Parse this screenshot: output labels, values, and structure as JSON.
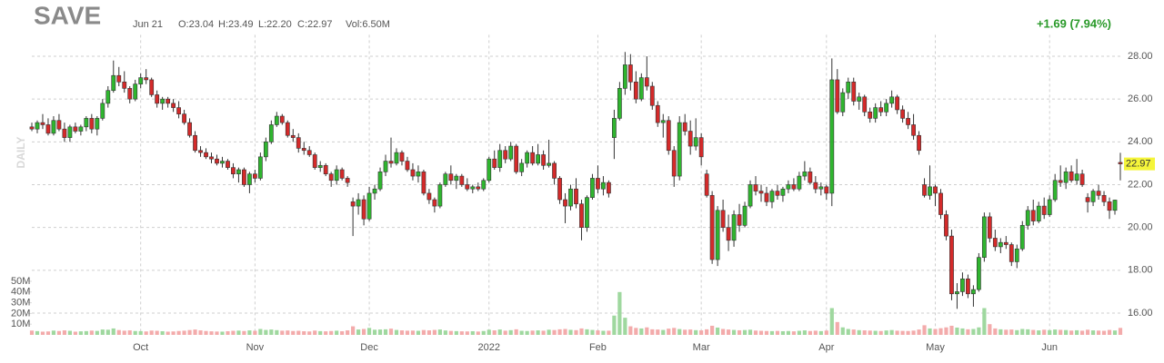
{
  "chart_data": {
    "type": "candlestick",
    "title": "SAVE",
    "side_label": "DAILY",
    "header": {
      "date": "Jun 21",
      "open": "O:23.04",
      "high": "H:23.49",
      "low": "L:22.20",
      "close": "C:22.97",
      "volume": "Vol:6.50M",
      "change": "+1.69 (7.94%)"
    },
    "up_color": "#2fb52f",
    "down_color": "#d42a2a",
    "volume_up_color": "#9fd89f",
    "volume_down_color": "#f3abab",
    "change_color": "#2a9a2a",
    "grid": true,
    "ylim": [
      15,
      29
    ],
    "yticks": [
      {
        "value": 16,
        "label": "16.00"
      },
      {
        "value": 18,
        "label": "18.00"
      },
      {
        "value": 20,
        "label": "20.00"
      },
      {
        "value": 22,
        "label": "22.00"
      },
      {
        "value": 24,
        "label": "24.00"
      },
      {
        "value": 26,
        "label": "26.00"
      },
      {
        "value": 28,
        "label": "28.00"
      }
    ],
    "last_price": {
      "value": 22.97,
      "label": "22.97"
    },
    "volume_ylim": [
      0,
      60
    ],
    "volume_ticks": [
      {
        "value": 10,
        "label": "10M"
      },
      {
        "value": 20,
        "label": "20M"
      },
      {
        "value": 30,
        "label": "30M"
      },
      {
        "value": 40,
        "label": "40M"
      },
      {
        "value": 50,
        "label": "50M"
      }
    ],
    "xticks": [
      {
        "value": 20,
        "label": "Oct"
      },
      {
        "value": 41,
        "label": "Nov"
      },
      {
        "value": 62,
        "label": "Dec"
      },
      {
        "value": 84,
        "label": "2022"
      },
      {
        "value": 104,
        "label": "Feb"
      },
      {
        "value": 123,
        "label": "Mar"
      },
      {
        "value": 146,
        "label": "Apr"
      },
      {
        "value": 166,
        "label": "May"
      },
      {
        "value": 187,
        "label": "Jun"
      }
    ],
    "candles": [
      [
        24.7,
        24.9,
        24.5,
        24.6
      ],
      [
        24.6,
        25.0,
        24.4,
        24.9
      ],
      [
        24.9,
        25.3,
        24.6,
        24.8
      ],
      [
        24.8,
        25.1,
        24.3,
        24.4
      ],
      [
        24.4,
        25.2,
        24.3,
        25.0
      ],
      [
        25.0,
        25.3,
        24.5,
        24.6
      ],
      [
        24.6,
        24.9,
        24.0,
        24.2
      ],
      [
        24.2,
        24.8,
        24.0,
        24.7
      ],
      [
        24.7,
        24.9,
        24.4,
        24.5
      ],
      [
        24.5,
        24.8,
        24.3,
        24.7
      ],
      [
        24.7,
        25.2,
        24.5,
        25.1
      ],
      [
        25.1,
        25.3,
        24.4,
        24.6
      ],
      [
        24.6,
        25.2,
        24.3,
        25.1
      ],
      [
        25.1,
        26.0,
        25.0,
        25.8
      ],
      [
        25.8,
        26.6,
        25.6,
        26.4
      ],
      [
        26.4,
        27.8,
        26.3,
        27.1
      ],
      [
        27.1,
        27.5,
        26.6,
        26.8
      ],
      [
        26.8,
        27.3,
        26.3,
        26.5
      ],
      [
        26.5,
        26.6,
        25.8,
        26.0
      ],
      [
        26.0,
        26.9,
        25.9,
        26.7
      ],
      [
        26.7,
        27.2,
        26.5,
        27.0
      ],
      [
        27.0,
        27.4,
        26.7,
        26.9
      ],
      [
        26.9,
        27.0,
        26.1,
        26.2
      ],
      [
        26.2,
        26.4,
        25.6,
        25.8
      ],
      [
        25.8,
        26.1,
        25.5,
        26.0
      ],
      [
        26.0,
        26.1,
        25.6,
        25.8
      ],
      [
        25.8,
        26.0,
        25.4,
        25.6
      ],
      [
        25.6,
        25.9,
        25.1,
        25.3
      ],
      [
        25.3,
        25.5,
        24.8,
        24.9
      ],
      [
        24.9,
        25.1,
        24.2,
        24.3
      ],
      [
        24.3,
        24.5,
        23.5,
        23.6
      ],
      [
        23.6,
        23.8,
        23.3,
        23.5
      ],
      [
        23.5,
        23.7,
        23.2,
        23.3
      ],
      [
        23.3,
        23.5,
        23.0,
        23.2
      ],
      [
        23.2,
        23.4,
        22.9,
        23.0
      ],
      [
        23.0,
        23.3,
        22.8,
        23.1
      ],
      [
        23.1,
        23.2,
        22.7,
        22.8
      ],
      [
        22.8,
        23.0,
        22.3,
        22.5
      ],
      [
        22.5,
        22.8,
        22.1,
        22.7
      ],
      [
        22.7,
        22.8,
        21.9,
        22.0
      ],
      [
        22.0,
        22.6,
        21.6,
        22.5
      ],
      [
        22.5,
        22.7,
        22.1,
        22.3
      ],
      [
        22.3,
        23.5,
        22.2,
        23.3
      ],
      [
        23.3,
        24.2,
        23.1,
        24.0
      ],
      [
        24.0,
        25.0,
        23.9,
        24.8
      ],
      [
        24.8,
        25.4,
        24.7,
        25.2
      ],
      [
        25.2,
        25.3,
        24.8,
        24.9
      ],
      [
        24.9,
        25.0,
        24.2,
        24.3
      ],
      [
        24.3,
        24.6,
        24.0,
        24.2
      ],
      [
        24.2,
        24.4,
        23.5,
        23.7
      ],
      [
        23.7,
        24.0,
        23.4,
        23.6
      ],
      [
        23.6,
        23.8,
        23.3,
        23.4
      ],
      [
        23.4,
        23.5,
        22.7,
        22.8
      ],
      [
        22.8,
        23.1,
        22.6,
        22.9
      ],
      [
        22.9,
        23.0,
        22.4,
        22.5
      ],
      [
        22.5,
        22.6,
        21.9,
        22.2
      ],
      [
        22.2,
        22.9,
        22.0,
        22.7
      ],
      [
        22.7,
        22.8,
        22.2,
        22.3
      ],
      [
        22.3,
        22.4,
        21.9,
        22.1
      ],
      [
        21.2,
        21.4,
        19.6,
        21.0
      ],
      [
        21.0,
        21.6,
        20.6,
        21.3
      ],
      [
        21.3,
        21.5,
        20.1,
        20.4
      ],
      [
        20.4,
        21.9,
        20.3,
        21.6
      ],
      [
        21.6,
        22.0,
        21.3,
        21.8
      ],
      [
        21.8,
        22.8,
        21.7,
        22.6
      ],
      [
        22.6,
        23.4,
        22.4,
        23.1
      ],
      [
        23.1,
        24.2,
        22.8,
        23.0
      ],
      [
        23.0,
        23.7,
        22.9,
        23.5
      ],
      [
        23.5,
        23.6,
        22.9,
        23.1
      ],
      [
        23.1,
        23.3,
        22.6,
        22.7
      ],
      [
        22.7,
        23.0,
        22.2,
        22.4
      ],
      [
        22.4,
        22.9,
        22.1,
        22.6
      ],
      [
        22.6,
        22.7,
        21.5,
        21.6
      ],
      [
        21.6,
        21.8,
        21.1,
        21.3
      ],
      [
        21.3,
        21.4,
        20.7,
        21.0
      ],
      [
        21.0,
        22.1,
        20.9,
        22.0
      ],
      [
        22.0,
        22.6,
        21.9,
        22.5
      ],
      [
        22.5,
        22.9,
        22.0,
        22.2
      ],
      [
        22.2,
        22.5,
        21.8,
        22.4
      ],
      [
        22.4,
        22.5,
        21.9,
        22.0
      ],
      [
        22.0,
        22.3,
        21.7,
        21.8
      ],
      [
        21.8,
        22.0,
        21.6,
        21.9
      ],
      [
        21.9,
        22.1,
        21.7,
        21.8
      ],
      [
        21.8,
        22.3,
        21.7,
        22.2
      ],
      [
        22.2,
        23.3,
        22.1,
        23.2
      ],
      [
        23.2,
        23.6,
        22.7,
        22.8
      ],
      [
        22.8,
        23.9,
        22.6,
        23.6
      ],
      [
        23.6,
        23.8,
        23.0,
        23.2
      ],
      [
        23.2,
        24.0,
        23.1,
        23.8
      ],
      [
        23.8,
        23.9,
        22.5,
        22.6
      ],
      [
        22.6,
        23.2,
        22.4,
        23.0
      ],
      [
        23.0,
        23.6,
        22.8,
        23.5
      ],
      [
        23.5,
        23.8,
        22.9,
        23.0
      ],
      [
        23.0,
        23.9,
        22.9,
        23.4
      ],
      [
        23.4,
        23.6,
        22.7,
        22.9
      ],
      [
        22.9,
        24.1,
        22.8,
        23.0
      ],
      [
        23.0,
        23.1,
        22.0,
        22.3
      ],
      [
        22.3,
        22.4,
        21.1,
        21.3
      ],
      [
        21.3,
        21.6,
        20.2,
        21.0
      ],
      [
        21.0,
        22.0,
        20.8,
        21.8
      ],
      [
        21.8,
        22.3,
        20.9,
        21.1
      ],
      [
        21.1,
        21.3,
        19.4,
        20.0
      ],
      [
        20.0,
        21.5,
        19.8,
        21.4
      ],
      [
        21.4,
        22.5,
        21.3,
        22.3
      ],
      [
        22.3,
        22.9,
        21.6,
        21.8
      ],
      [
        21.8,
        22.4,
        21.5,
        22.1
      ],
      [
        22.1,
        22.2,
        21.4,
        21.6
      ],
      [
        24.2,
        25.5,
        23.2,
        25.1
      ],
      [
        25.1,
        26.8,
        25.0,
        26.5
      ],
      [
        26.5,
        28.2,
        26.2,
        27.6
      ],
      [
        27.6,
        28.1,
        26.4,
        26.8
      ],
      [
        26.8,
        27.3,
        25.8,
        26.0
      ],
      [
        26.0,
        27.2,
        25.9,
        27.0
      ],
      [
        27.0,
        28.0,
        26.4,
        26.6
      ],
      [
        26.6,
        26.8,
        25.5,
        25.7
      ],
      [
        25.7,
        25.9,
        24.7,
        24.9
      ],
      [
        24.9,
        25.3,
        24.2,
        25.0
      ],
      [
        25.0,
        25.2,
        23.4,
        23.6
      ],
      [
        23.6,
        23.8,
        21.9,
        22.4
      ],
      [
        22.4,
        25.2,
        22.2,
        24.9
      ],
      [
        24.9,
        25.3,
        24.3,
        24.5
      ],
      [
        24.5,
        25.0,
        23.4,
        23.8
      ],
      [
        23.8,
        25.1,
        23.6,
        24.2
      ],
      [
        24.2,
        24.4,
        22.9,
        23.3
      ],
      [
        22.5,
        22.7,
        21.4,
        21.5
      ],
      [
        21.5,
        21.7,
        18.3,
        18.5
      ],
      [
        18.5,
        21.0,
        18.2,
        20.8
      ],
      [
        20.8,
        21.3,
        19.8,
        20.0
      ],
      [
        20.0,
        20.6,
        18.9,
        19.4
      ],
      [
        19.4,
        20.8,
        19.1,
        20.6
      ],
      [
        20.6,
        21.1,
        19.8,
        20.1
      ],
      [
        20.1,
        21.2,
        20.0,
        21.0
      ],
      [
        21.0,
        22.2,
        20.9,
        22.0
      ],
      [
        22.0,
        22.4,
        21.5,
        21.7
      ],
      [
        21.7,
        22.0,
        21.2,
        21.6
      ],
      [
        21.6,
        21.9,
        21.0,
        21.2
      ],
      [
        21.2,
        21.8,
        20.9,
        21.7
      ],
      [
        21.7,
        22.0,
        21.3,
        21.5
      ],
      [
        21.5,
        21.9,
        21.2,
        21.8
      ],
      [
        21.8,
        22.2,
        21.6,
        22.0
      ],
      [
        22.0,
        22.3,
        21.7,
        21.8
      ],
      [
        21.8,
        22.6,
        21.7,
        22.4
      ],
      [
        22.4,
        23.1,
        22.2,
        22.6
      ],
      [
        22.6,
        22.8,
        22.0,
        22.1
      ],
      [
        22.1,
        22.4,
        21.6,
        21.8
      ],
      [
        21.8,
        22.1,
        21.5,
        21.9
      ],
      [
        21.9,
        22.0,
        21.3,
        21.6
      ],
      [
        21.6,
        27.9,
        21.0,
        26.9
      ],
      [
        26.9,
        27.4,
        25.3,
        25.4
      ],
      [
        25.4,
        26.5,
        25.2,
        26.3
      ],
      [
        26.3,
        27.0,
        26.0,
        26.8
      ],
      [
        26.8,
        27.0,
        25.7,
        25.9
      ],
      [
        25.9,
        26.3,
        25.5,
        26.1
      ],
      [
        26.1,
        26.2,
        25.2,
        25.4
      ],
      [
        25.4,
        25.6,
        24.9,
        25.1
      ],
      [
        25.1,
        25.8,
        24.9,
        25.6
      ],
      [
        25.6,
        25.9,
        25.2,
        25.4
      ],
      [
        25.4,
        26.0,
        25.2,
        25.8
      ],
      [
        25.8,
        26.4,
        25.6,
        26.1
      ],
      [
        26.1,
        26.2,
        25.3,
        25.5
      ],
      [
        25.5,
        25.7,
        24.9,
        25.1
      ],
      [
        25.1,
        25.4,
        24.6,
        24.8
      ],
      [
        24.8,
        25.3,
        24.1,
        24.3
      ],
      [
        24.3,
        24.5,
        23.4,
        23.6
      ],
      [
        22.0,
        22.3,
        21.4,
        21.5
      ],
      [
        21.5,
        22.9,
        21.3,
        21.9
      ],
      [
        21.9,
        22.0,
        21.0,
        21.6
      ],
      [
        21.6,
        21.8,
        20.4,
        20.6
      ],
      [
        20.6,
        20.8,
        19.4,
        19.6
      ],
      [
        19.6,
        19.9,
        16.6,
        16.9
      ],
      [
        16.9,
        17.4,
        16.2,
        17.0
      ],
      [
        17.0,
        17.9,
        16.8,
        17.6
      ],
      [
        17.6,
        17.8,
        16.7,
        16.9
      ],
      [
        16.9,
        17.3,
        16.3,
        17.1
      ],
      [
        17.1,
        18.8,
        17.0,
        18.6
      ],
      [
        18.6,
        20.7,
        18.4,
        20.5
      ],
      [
        20.5,
        20.7,
        19.3,
        19.5
      ],
      [
        19.5,
        19.9,
        18.9,
        19.1
      ],
      [
        19.1,
        19.5,
        18.8,
        19.3
      ],
      [
        19.3,
        19.6,
        19.0,
        19.2
      ],
      [
        19.2,
        19.3,
        18.2,
        18.4
      ],
      [
        18.4,
        19.2,
        18.1,
        19.0
      ],
      [
        19.0,
        20.3,
        18.9,
        20.1
      ],
      [
        20.1,
        21.0,
        19.9,
        20.8
      ],
      [
        20.8,
        21.3,
        20.1,
        20.3
      ],
      [
        20.3,
        21.2,
        20.2,
        21.0
      ],
      [
        21.0,
        21.4,
        20.4,
        20.6
      ],
      [
        20.6,
        21.5,
        20.5,
        21.3
      ],
      [
        21.3,
        22.5,
        21.2,
        22.2
      ],
      [
        22.2,
        22.9,
        21.9,
        22.1
      ],
      [
        22.1,
        22.8,
        21.8,
        22.6
      ],
      [
        22.6,
        22.9,
        22.1,
        22.2
      ],
      [
        22.2,
        23.2,
        22.0,
        22.5
      ],
      [
        22.5,
        22.7,
        21.9,
        22.0
      ],
      [
        21.4,
        21.6,
        20.7,
        21.2
      ],
      [
        21.2,
        21.8,
        21.0,
        21.7
      ],
      [
        21.7,
        22.0,
        21.3,
        21.5
      ],
      [
        21.5,
        21.7,
        21.0,
        21.2
      ],
      [
        21.2,
        21.4,
        20.4,
        20.8
      ],
      [
        20.8,
        21.3,
        20.6,
        21.28
      ],
      [
        23.04,
        23.49,
        22.2,
        22.97
      ]
    ],
    "volume": [
      4,
      3.5,
      3,
      3.2,
      4,
      3.6,
      4.2,
      3.8,
      3,
      3.3,
      3.5,
      4,
      3.7,
      5,
      4.8,
      6,
      4.5,
      3.9,
      4.2,
      3.6,
      3.5,
      3.2,
      4,
      3.8,
      3.4,
      3,
      3.2,
      3.6,
      3.9,
      4.5,
      5,
      4.2,
      3.6,
      3.3,
      3.1,
      3,
      3.4,
      3.8,
      4,
      3.6,
      4.2,
      3.8,
      5.5,
      4.6,
      5,
      4.4,
      3.9,
      4.1,
      3.6,
      3.8,
      3.4,
      3.2,
      4,
      3.5,
      3.3,
      3.6,
      3.9,
      3.4,
      4.2,
      8,
      5,
      5.5,
      6.5,
      4.8,
      5,
      5.2,
      5.8,
      4.6,
      4.2,
      3.9,
      4,
      3.8,
      4.5,
      4.2,
      4.6,
      5,
      4.1,
      3.7,
      3.5,
      3.3,
      3.2,
      3.4,
      3.1,
      3.6,
      4.8,
      4.2,
      5,
      3.9,
      4.4,
      5.2,
      3.8,
      3.6,
      4,
      4.2,
      3.9,
      4.8,
      4.5,
      5.2,
      5.5,
      4.7,
      4.4,
      6,
      5.2,
      4.6,
      4.2,
      3.8,
      3.9,
      18,
      40,
      16,
      8,
      6.5,
      6,
      7,
      5.2,
      5,
      4.6,
      5.8,
      6.5,
      5.4,
      4.8,
      5,
      4.4,
      4.2,
      5.2,
      8.5,
      6.8,
      5.5,
      5,
      4.6,
      4.3,
      4.5,
      4.8,
      4,
      3.8,
      3.6,
      3.5,
      3.7,
      3.4,
      3.6,
      3.3,
      3.8,
      4.2,
      3.6,
      3.9,
      3.5,
      4,
      25,
      12,
      7,
      5.5,
      5,
      4.4,
      4.2,
      4,
      3.8,
      3.6,
      4.1,
      4.5,
      3.9,
      3.7,
      3.6,
      4,
      5,
      9,
      6,
      5.5,
      6.2,
      7,
      8.5,
      6.8,
      6,
      5.2,
      5.5,
      7,
      25,
      10,
      6,
      5.2,
      4.8,
      5,
      4.4,
      5.5,
      5.2,
      4.6,
      4.2,
      4.8,
      4.4,
      5,
      4.7,
      4.5,
      4,
      4.3,
      3.9,
      4.8,
      4.2,
      4,
      3.8,
      4.6,
      4.1,
      6.5
    ]
  }
}
